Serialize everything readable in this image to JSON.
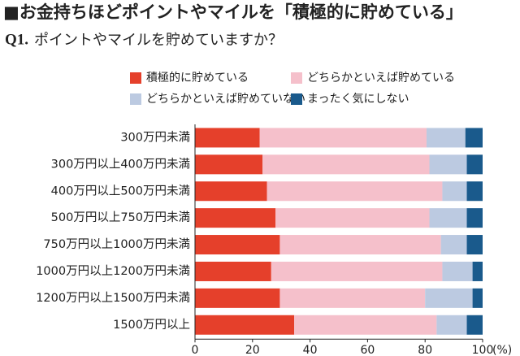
{
  "chart_data": {
    "type": "stacked-bar-horizontal",
    "title": "■お金持ちほどポイントやマイルを「積極的に貯めている」",
    "question_number": "Q1.",
    "subtitle": "ポイントやマイルを貯めていますか？",
    "categories": [
      "300万円未満",
      "300万円以上400万円未満",
      "400万円以上500万円未満",
      "500万円以上750万円未満",
      "750万円以上1000万円未満",
      "1000万円以上1200万円未満",
      "1200万円以上1500万円未満",
      "1500万円以上"
    ],
    "series": [
      {
        "name": "積極的に貯めている",
        "color": "#e5402b",
        "values": [
          22.5,
          23.5,
          25,
          28,
          29.5,
          26.5,
          29.5,
          34.5
        ]
      },
      {
        "name": "どちらかといえば貯めている",
        "color": "#f5c0cb",
        "values": [
          58,
          58,
          61,
          53.5,
          56,
          59.5,
          50.5,
          49.5
        ]
      },
      {
        "name": "どちらかといえば貯めていない",
        "color": "#bccae1",
        "values": [
          13.5,
          13,
          8.5,
          13,
          9,
          10.5,
          16.5,
          10.5
        ]
      },
      {
        "name": "まったく気にしない",
        "color": "#1a5a8c",
        "values": [
          6,
          5.5,
          5.5,
          5.5,
          5.5,
          3.5,
          3.5,
          5.5
        ]
      }
    ],
    "xlim": [
      0,
      100
    ],
    "xticks": [
      0,
      20,
      40,
      60,
      80,
      100
    ],
    "x_unit": "(%)",
    "grid": false
  }
}
